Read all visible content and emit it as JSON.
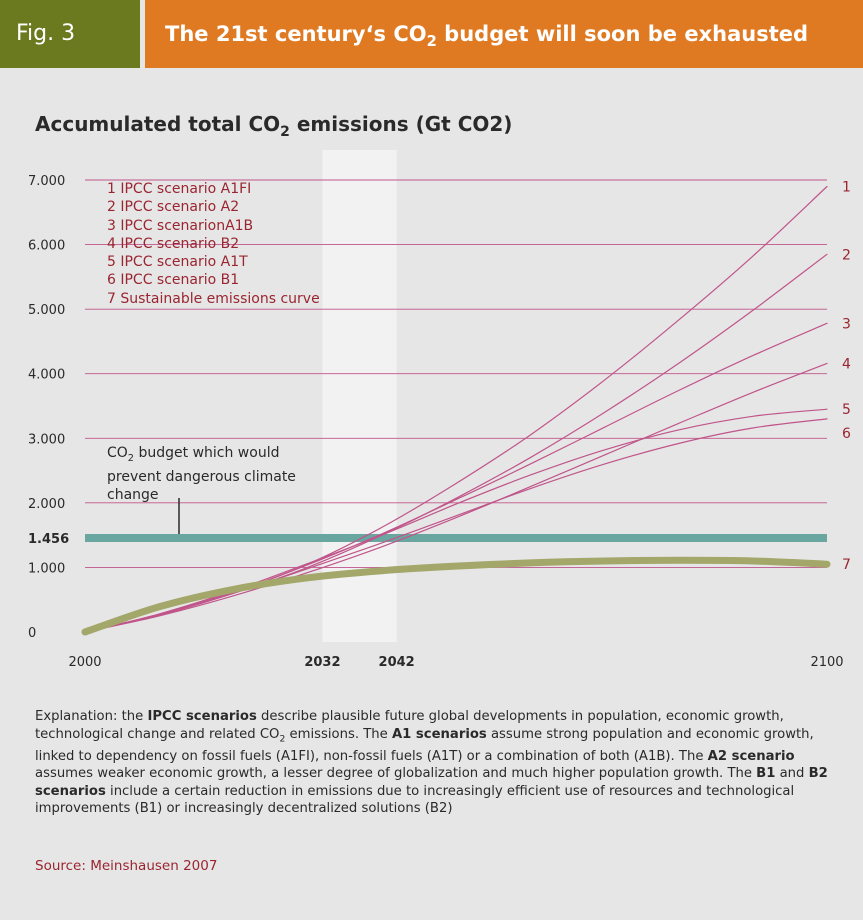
{
  "header": {
    "fig_label": "Fig. 3",
    "title_pre": "The 21st century‘s CO",
    "title_sub": "2",
    "title_post": " budget will soon be exhausted"
  },
  "chart_data": {
    "type": "line",
    "title_pre": "Accumulated total CO",
    "title_sub": "2",
    "title_post": " emissions (Gt CO2)",
    "xlim": [
      2000,
      2100
    ],
    "ylim": [
      0,
      7000
    ],
    "x_ticks": [
      {
        "value": 2000,
        "label": "2000",
        "bold": false
      },
      {
        "value": 2032,
        "label": "2032",
        "bold": true
      },
      {
        "value": 2042,
        "label": "2042",
        "bold": true
      },
      {
        "value": 2100,
        "label": "2100",
        "bold": false
      }
    ],
    "y_ticks": [
      {
        "value": 0,
        "label": "0",
        "bold": false
      },
      {
        "value": 1000,
        "label": "1.000",
        "bold": false
      },
      {
        "value": 1456,
        "label": "1.456",
        "bold": true
      },
      {
        "value": 2000,
        "label": "2.000",
        "bold": false
      },
      {
        "value": 3000,
        "label": "3.000",
        "bold": false
      },
      {
        "value": 4000,
        "label": "4.000",
        "bold": false
      },
      {
        "value": 5000,
        "label": "5.000",
        "bold": false
      },
      {
        "value": 6000,
        "label": "6.000",
        "bold": false
      },
      {
        "value": 7000,
        "label": "7.000",
        "bold": false
      }
    ],
    "highlight_band": [
      2032,
      2042
    ],
    "budget": {
      "value": 1456,
      "label_pre": "CO",
      "label_sub": "2",
      "label_post": " budget which would prevent dangerous climate change",
      "color": "#6aa6a0"
    },
    "grid_color": "#c0558a",
    "series_color": "#c0558a",
    "sustainable_color": "#a3a76a",
    "series": [
      {
        "id": "1",
        "name": "IPCC scenario A1FI",
        "x": [
          2000,
          2010,
          2020,
          2030,
          2040,
          2050,
          2060,
          2070,
          2080,
          2090,
          2100
        ],
        "values": [
          0,
          260,
          610,
          1050,
          1620,
          2300,
          3050,
          3900,
          4830,
          5820,
          6900
        ]
      },
      {
        "id": "2",
        "name": "IPCC scenario A2",
        "x": [
          2000,
          2010,
          2020,
          2030,
          2040,
          2050,
          2060,
          2070,
          2080,
          2090,
          2100
        ],
        "values": [
          0,
          260,
          600,
          1000,
          1500,
          2070,
          2700,
          3400,
          4160,
          4980,
          5850
        ]
      },
      {
        "id": "3",
        "name": "IPCC scenarionA1B",
        "x": [
          2000,
          2010,
          2020,
          2030,
          2040,
          2050,
          2060,
          2070,
          2080,
          2090,
          2100
        ],
        "values": [
          0,
          270,
          620,
          1040,
          1520,
          2050,
          2600,
          3170,
          3740,
          4280,
          4780
        ]
      },
      {
        "id": "4",
        "name": "IPCC scenario B2",
        "x": [
          2000,
          2010,
          2020,
          2030,
          2040,
          2050,
          2060,
          2070,
          2080,
          2090,
          2100
        ],
        "values": [
          0,
          250,
          560,
          920,
          1320,
          1770,
          2250,
          2740,
          3230,
          3710,
          4160
        ]
      },
      {
        "id": "5",
        "name": "IPCC scenario A1T",
        "x": [
          2000,
          2010,
          2020,
          2030,
          2040,
          2050,
          2060,
          2070,
          2080,
          2090,
          2100
        ],
        "values": [
          0,
          280,
          640,
          1060,
          1500,
          1980,
          2430,
          2820,
          3130,
          3340,
          3450
        ]
      },
      {
        "id": "6",
        "name": "IPCC scenario B1",
        "x": [
          2000,
          2010,
          2020,
          2030,
          2040,
          2050,
          2060,
          2070,
          2080,
          2090,
          2100
        ],
        "values": [
          0,
          265,
          600,
          980,
          1380,
          1800,
          2220,
          2600,
          2920,
          3160,
          3300
        ]
      },
      {
        "id": "7",
        "name": "Sustainable emissions curve",
        "x": [
          2000,
          2010,
          2020,
          2030,
          2040,
          2050,
          2060,
          2070,
          2080,
          2090,
          2100
        ],
        "values": [
          0,
          390,
          660,
          840,
          950,
          1020,
          1070,
          1100,
          1110,
          1100,
          1050
        ]
      }
    ]
  },
  "explanation": {
    "t1": "Explanation: the ",
    "b1": "IPCC scenarios",
    "t2": " describe plausible future global developments in population, economic growth, technological change and related CO",
    "sub1": "2",
    "t3": " emissions. The ",
    "b2": "A1 scenarios",
    "t4": " assume strong population and economic growth, linked to dependency on fossil fuels (A1FI), non-fossil fuels (A1T) or a combination of both (A1B). The ",
    "b3": "A2 scenario",
    "t5": " assumes weaker economic growth, a lesser degree of globalization and much higher population growth. The ",
    "b4": "B1",
    "t6": " and ",
    "b5": "B2 scenarios",
    "t7": " include a certain reduction in emissions due to increasingly efficient use of resources and technological improvements (B1) or increasingly decentralized solutions (B2)"
  },
  "source": "Source: Meinshausen 2007"
}
